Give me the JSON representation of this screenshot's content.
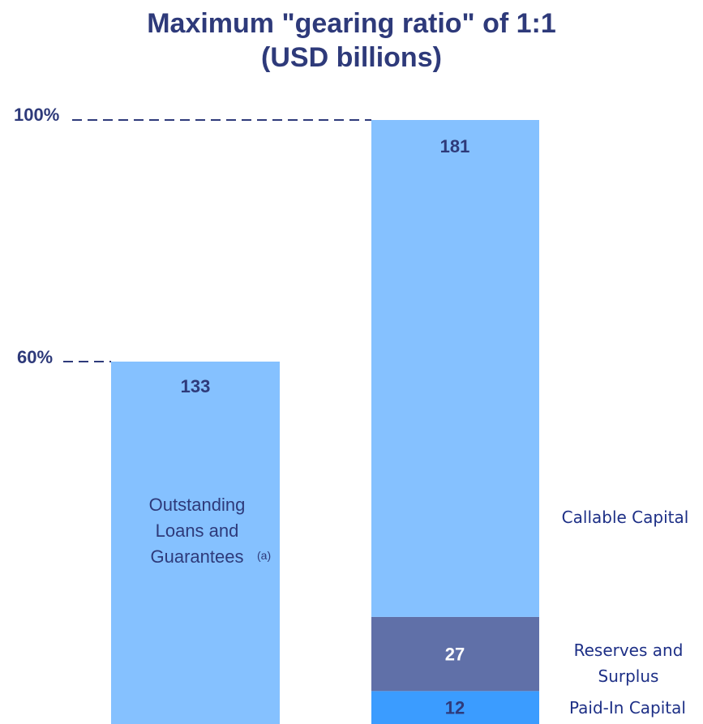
{
  "chart_data": {
    "type": "bar",
    "title": "Maximum \"gearing ratio\" of 1:1",
    "subtitle": "(USD billions)",
    "y_ticks": [
      {
        "label": "100%",
        "value": 100
      },
      {
        "label": "60%",
        "value": 60
      }
    ],
    "bars": [
      {
        "label_lines": [
          "Outstanding",
          "Loans and",
          "Guarantees"
        ],
        "footnote": "(a)",
        "segments": [
          {
            "name": "Outstanding Loans and Guarantees",
            "value": 133,
            "label": "133",
            "color": "#85c1ff",
            "label_color": "#2e3a7a"
          }
        ],
        "top_percent": 60
      },
      {
        "segments": [
          {
            "name": "Paid-In Capital",
            "value": 12,
            "label": "12",
            "color": "#3b9cff",
            "label_color": "#2e3a7a"
          },
          {
            "name": "Reserves and Surplus",
            "value": 27,
            "label": "27",
            "color": "#6070a8",
            "label_color": "#ffffff"
          },
          {
            "name": "Callable Capital",
            "value": 181,
            "label": "181",
            "color": "#85c1ff",
            "label_color": "#2e3a7a"
          }
        ],
        "top_percent": 100
      }
    ],
    "segment_labels": [
      {
        "lines": [
          "Callable Capital"
        ]
      },
      {
        "lines": [
          "Reserves and",
          "Surplus"
        ]
      },
      {
        "lines": [
          "Paid-In Capital"
        ]
      }
    ]
  },
  "style": {
    "title_color": "#2e3a7a",
    "dash_color": "#2e3a7a"
  }
}
